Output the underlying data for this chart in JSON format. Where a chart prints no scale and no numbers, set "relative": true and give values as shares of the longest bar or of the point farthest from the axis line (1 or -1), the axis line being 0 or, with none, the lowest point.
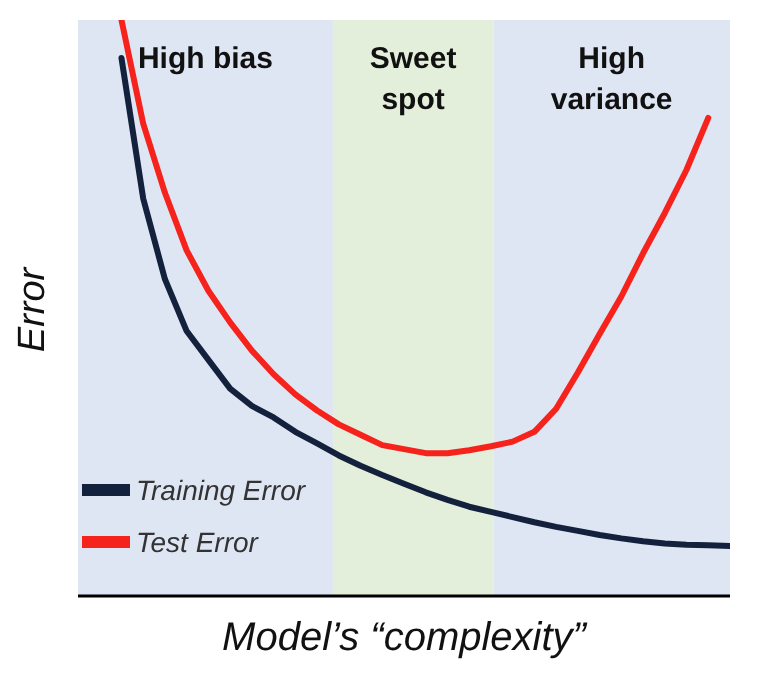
{
  "chart_data": {
    "type": "line",
    "relative": true,
    "xlabel": "Model’s “complexity”",
    "ylabel": "Error",
    "grid": false,
    "legend": "bottom left",
    "marker": "none",
    "line_style": "solid",
    "categories": [
      null,
      null,
      null,
      null,
      null,
      null,
      null,
      null,
      null,
      null,
      null,
      null,
      null,
      null,
      null,
      null,
      null,
      null,
      null,
      null,
      null,
      null,
      null,
      null,
      null,
      null,
      null,
      null,
      null,
      null,
      null
    ],
    "annotations": [
      "High bias",
      "Sweet spot",
      "High variance"
    ],
    "series": [
      {
        "name": "Training Error",
        "color": "#14213d",
        "values": [
          null,
          null,
          0.934,
          0.69,
          0.55,
          0.46,
          0.41,
          0.36,
          0.33,
          0.31,
          0.285,
          0.265,
          0.244,
          0.226,
          0.21,
          0.195,
          0.18,
          0.167,
          0.155,
          0.146,
          0.137,
          0.128,
          0.12,
          0.113,
          0.106,
          0.1,
          0.095,
          0.091,
          0.089,
          0.088,
          0.087
        ]
      },
      {
        "name": "Test Error",
        "color": "#f5231b",
        "values": [
          null,
          null,
          1,
          0.82,
          0.7,
          0.6,
          0.53,
          0.475,
          0.426,
          0.385,
          0.35,
          0.322,
          0.298,
          0.28,
          0.262,
          0.255,
          0.248,
          0.248,
          0.253,
          0.26,
          0.268,
          0.285,
          0.325,
          0.388,
          0.455,
          0.52,
          0.595,
          0.665,
          0.74,
          0.83,
          null
        ]
      }
    ]
  }
}
